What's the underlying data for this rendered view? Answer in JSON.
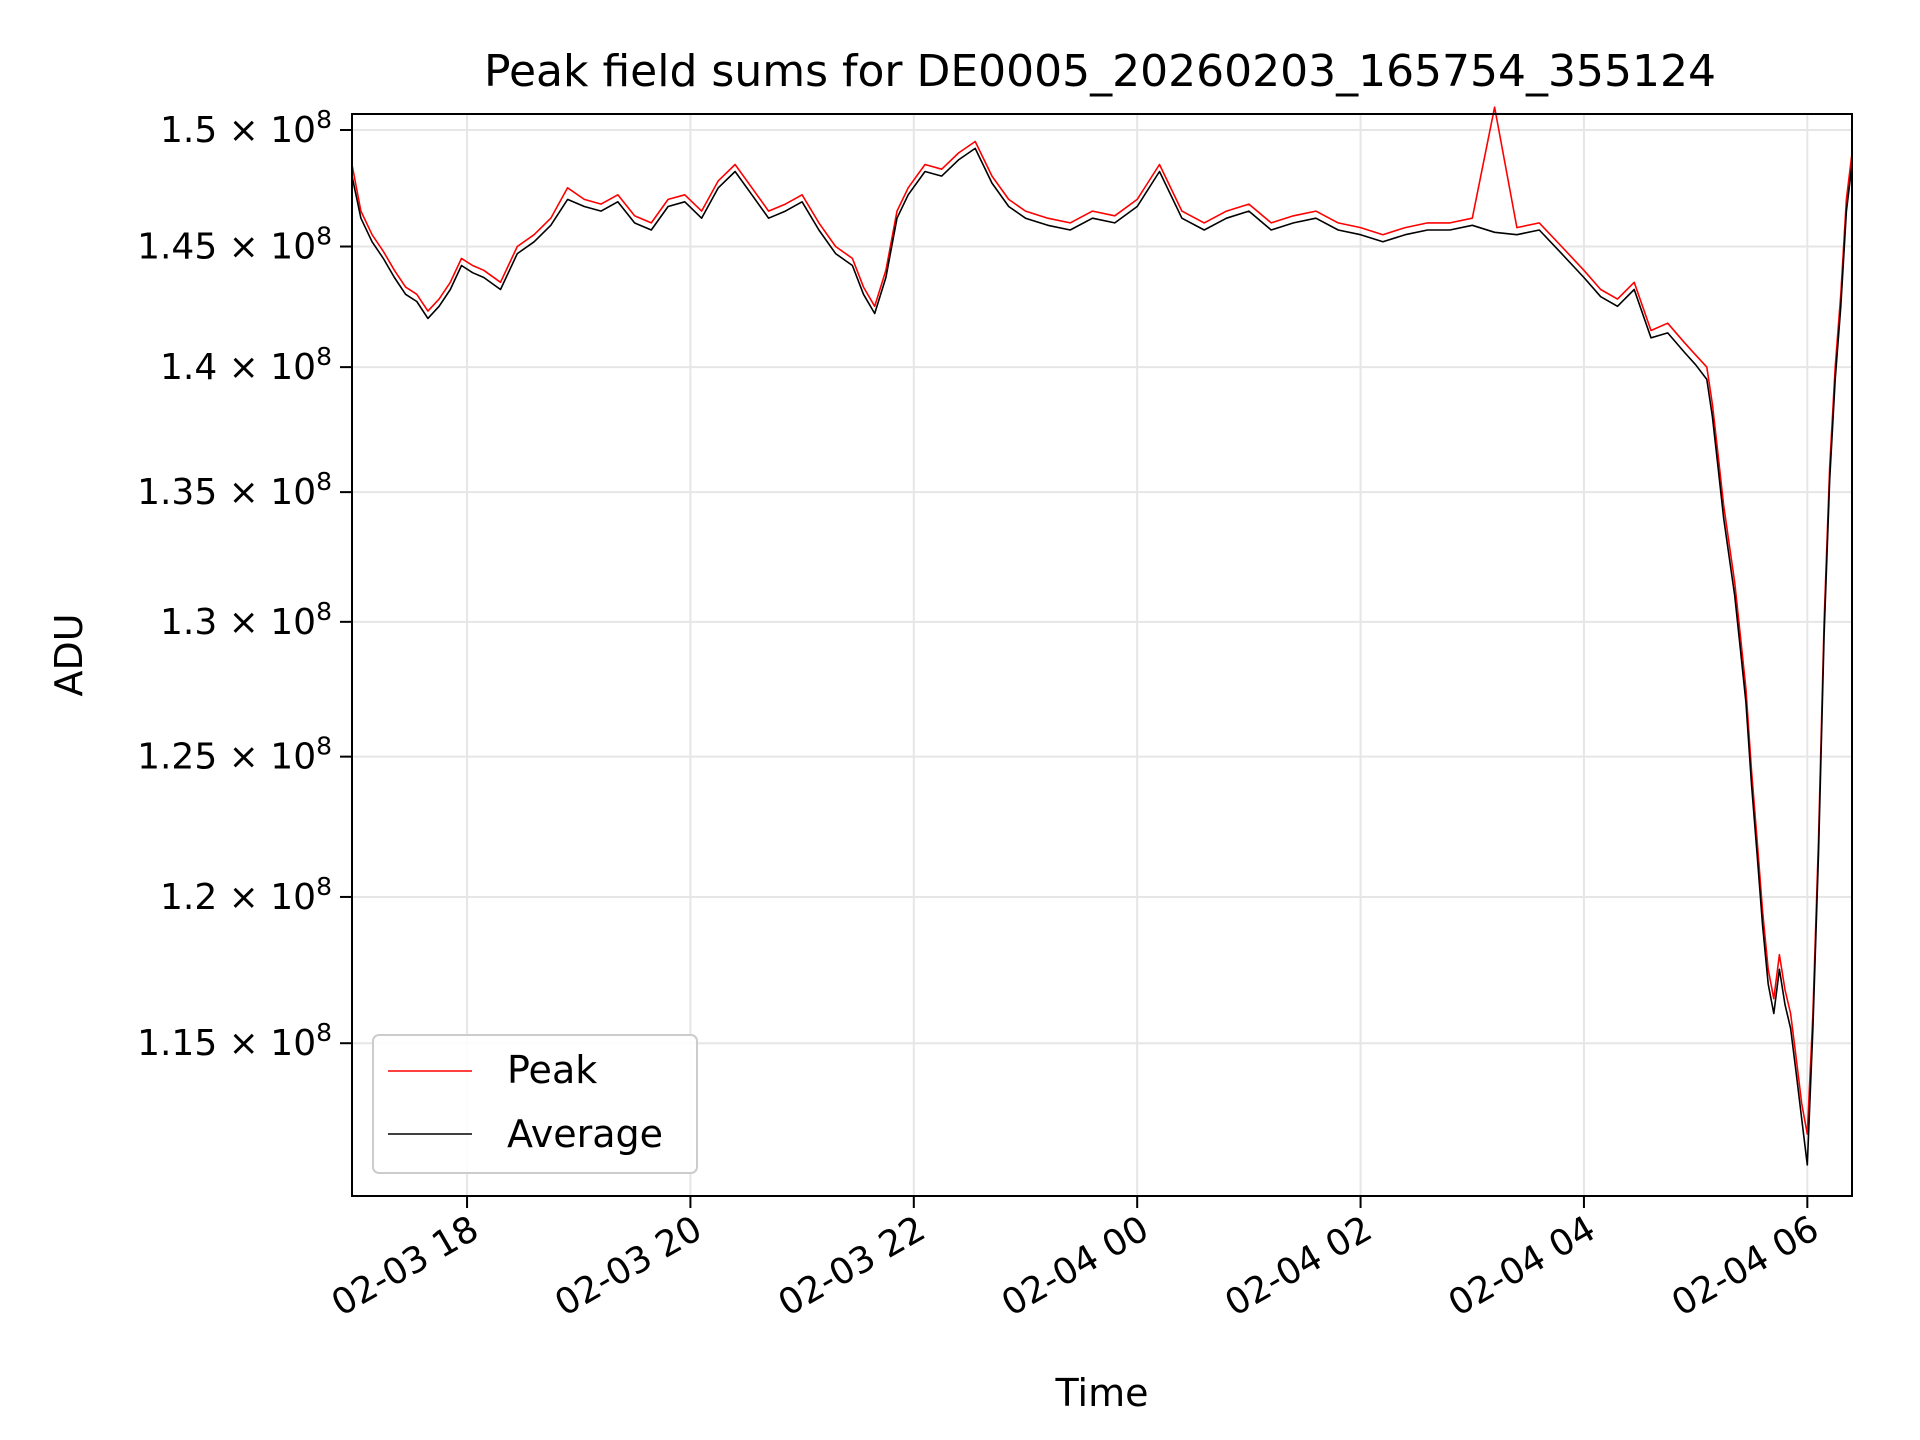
{
  "chart_data": {
    "type": "line",
    "title": "Peak field sums for DE0005_20260203_165754_355124",
    "xlabel": "Time",
    "ylabel": "ADU",
    "y_scale": "log",
    "xlim_hours": [
      16.97,
      30.4
    ],
    "ylim": [
      110000000,
      150700000
    ],
    "grid": true,
    "legend_location": "lower-left",
    "x_ticks": [
      {
        "hour": 18,
        "label": "02-03 18"
      },
      {
        "hour": 20,
        "label": "02-03 20"
      },
      {
        "hour": 22,
        "label": "02-03 22"
      },
      {
        "hour": 24,
        "label": "02-04 00"
      },
      {
        "hour": 26,
        "label": "02-04 02"
      },
      {
        "hour": 28,
        "label": "02-04 04"
      },
      {
        "hour": 30,
        "label": "02-04 06"
      }
    ],
    "y_ticks": [
      {
        "value": 115000000,
        "mantissa": "1.15",
        "exponent": "8"
      },
      {
        "value": 120000000,
        "mantissa": "1.2",
        "exponent": "8"
      },
      {
        "value": 125000000,
        "mantissa": "1.25",
        "exponent": "8"
      },
      {
        "value": 130000000,
        "mantissa": "1.3",
        "exponent": "8"
      },
      {
        "value": 135000000,
        "mantissa": "1.35",
        "exponent": "8"
      },
      {
        "value": 140000000,
        "mantissa": "1.4",
        "exponent": "8"
      },
      {
        "value": 145000000,
        "mantissa": "1.45",
        "exponent": "8"
      },
      {
        "value": 150000000,
        "mantissa": "1.5",
        "exponent": "8"
      }
    ],
    "x_hours": [
      16.97,
      17.05,
      17.15,
      17.25,
      17.35,
      17.45,
      17.55,
      17.65,
      17.75,
      17.85,
      17.95,
      18.05,
      18.15,
      18.3,
      18.45,
      18.6,
      18.75,
      18.9,
      19.05,
      19.2,
      19.35,
      19.5,
      19.65,
      19.8,
      19.95,
      20.1,
      20.25,
      20.4,
      20.55,
      20.7,
      20.85,
      21.0,
      21.15,
      21.3,
      21.45,
      21.55,
      21.65,
      21.75,
      21.85,
      21.95,
      22.1,
      22.25,
      22.4,
      22.55,
      22.7,
      22.85,
      23.0,
      23.2,
      23.4,
      23.6,
      23.8,
      24.0,
      24.2,
      24.4,
      24.6,
      24.8,
      25.0,
      25.2,
      25.4,
      25.6,
      25.8,
      26.0,
      26.2,
      26.4,
      26.6,
      26.8,
      27.0,
      27.2,
      27.4,
      27.6,
      27.8,
      28.0,
      28.15,
      28.3,
      28.45,
      28.6,
      28.75,
      28.9,
      29.0,
      29.1,
      29.15,
      29.2,
      29.25,
      29.3,
      29.35,
      29.4,
      29.45,
      29.5,
      29.55,
      29.6,
      29.65,
      29.7,
      29.75,
      29.8,
      29.85,
      29.9,
      29.95,
      30.0,
      30.05,
      30.1,
      30.15,
      30.2,
      30.25,
      30.3,
      30.35,
      30.4
    ],
    "series": [
      {
        "name": "Peak",
        "color": "#ff0000",
        "values": [
          148500000,
          146500000,
          145500000,
          144800000,
          144000000,
          143300000,
          143000000,
          142300000,
          142800000,
          143500000,
          144500000,
          144200000,
          144000000,
          143500000,
          145000000,
          145500000,
          146200000,
          147500000,
          147000000,
          146800000,
          147200000,
          146300000,
          146000000,
          147000000,
          147200000,
          146500000,
          147800000,
          148500000,
          147500000,
          146500000,
          146800000,
          147200000,
          146000000,
          145000000,
          144500000,
          143300000,
          142500000,
          144000000,
          146500000,
          147500000,
          148500000,
          148300000,
          149000000,
          149500000,
          148000000,
          147000000,
          146500000,
          146200000,
          146000000,
          146500000,
          146300000,
          147000000,
          148500000,
          146500000,
          146000000,
          146500000,
          146800000,
          146000000,
          146300000,
          146500000,
          146000000,
          145800000,
          145500000,
          145800000,
          146000000,
          146000000,
          146200000,
          151000000,
          145800000,
          146000000,
          145000000,
          144000000,
          143200000,
          142800000,
          143500000,
          141500000,
          141800000,
          141000000,
          140500000,
          140000000,
          138500000,
          136500000,
          134500000,
          133000000,
          131500000,
          129500000,
          127500000,
          124500000,
          122000000,
          119500000,
          117500000,
          116500000,
          118000000,
          116800000,
          116000000,
          114500000,
          113000000,
          112000000,
          116000000,
          122000000,
          130000000,
          136000000,
          140000000,
          143000000,
          147000000,
          149000000
        ]
      },
      {
        "name": "Average",
        "color": "#000000",
        "values": [
          148000000,
          146200000,
          145200000,
          144500000,
          143700000,
          143000000,
          142700000,
          142000000,
          142500000,
          143200000,
          144200000,
          143900000,
          143700000,
          143200000,
          144700000,
          145200000,
          145900000,
          147000000,
          146700000,
          146500000,
          146900000,
          146000000,
          145700000,
          146700000,
          146900000,
          146200000,
          147500000,
          148200000,
          147200000,
          146200000,
          146500000,
          146900000,
          145700000,
          144700000,
          144200000,
          143000000,
          142200000,
          143700000,
          146200000,
          147200000,
          148200000,
          148000000,
          148700000,
          149200000,
          147700000,
          146700000,
          146200000,
          145900000,
          145700000,
          146200000,
          146000000,
          146700000,
          148200000,
          146200000,
          145700000,
          146200000,
          146500000,
          145700000,
          146000000,
          146200000,
          145700000,
          145500000,
          145200000,
          145500000,
          145700000,
          145700000,
          145900000,
          145600000,
          145500000,
          145700000,
          144700000,
          143700000,
          142900000,
          142500000,
          143200000,
          141200000,
          141400000,
          140600000,
          140100000,
          139500000,
          138000000,
          136000000,
          134000000,
          132500000,
          131000000,
          129000000,
          127000000,
          124000000,
          121500000,
          119000000,
          117000000,
          116000000,
          117500000,
          116300000,
          115500000,
          114000000,
          112500000,
          111000000,
          115500000,
          121500000,
          129500000,
          135500000,
          139500000,
          142500000,
          146500000,
          148500000
        ]
      }
    ]
  }
}
